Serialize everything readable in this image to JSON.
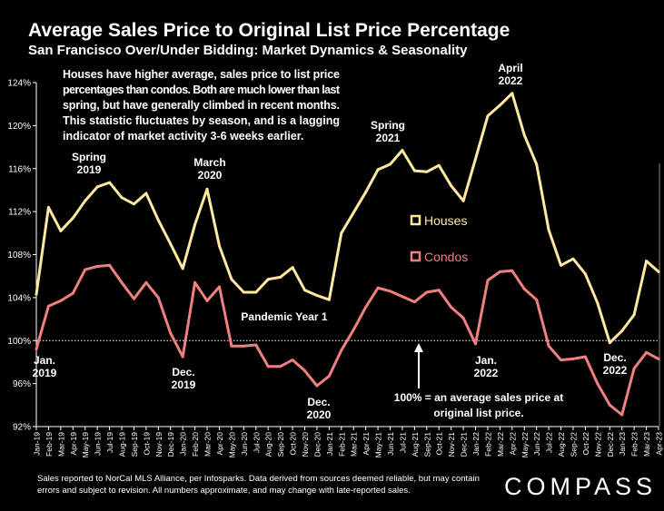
{
  "title": "Average Sales Price to Original List Price Percentage",
  "subtitle": "San Francisco Over/Under Bidding: Market Dynamics & Seasonality",
  "footnote": "Sales reported to NorCal MLS Alliance, per Infosparks. Data derived from sources deemed reliable, but may contain errors and subject to revision. All numbers approximate, and may change with late-reported sales.",
  "logo": "COMPASS",
  "colors": {
    "houses": "#FFE9A0",
    "condos": "#F08080",
    "background": "#000000",
    "text": "#FFFFFF"
  },
  "chart_data": {
    "type": "line",
    "categories": [
      "Jan-19",
      "Feb-19",
      "Mar-19",
      "Apr-19",
      "May-19",
      "Jun-19",
      "Jul-19",
      "Aug-19",
      "Sep-19",
      "Oct-19",
      "Nov-19",
      "Dec-19",
      "Jan-20",
      "Feb-20",
      "Mar-20",
      "Apr-20",
      "May-20",
      "Jun-20",
      "Jul-20",
      "Aug-20",
      "Sep-20",
      "Oct-20",
      "Nov-20",
      "Dec-20",
      "Jan-21",
      "Feb-21",
      "Mar-21",
      "Apr-21",
      "May-21",
      "Jun-21",
      "Jul-21",
      "Aug-21",
      "Sep-21",
      "Oct-21",
      "Nov-21",
      "Dec-21",
      "Jan-22",
      "Feb-22",
      "Mar-22",
      "Apr-22",
      "May-22",
      "Jun-22",
      "Jul-22",
      "Aug-22",
      "Sep-22",
      "Oct-22",
      "Nov-22",
      "Dec-22",
      "Jan-23",
      "Feb-23",
      "Mar-23",
      "Apr-23"
    ],
    "series": [
      {
        "name": "Houses",
        "values": [
          104.3,
          112.4,
          110.2,
          111.4,
          113.0,
          114.3,
          114.7,
          113.3,
          112.7,
          113.7,
          111.2,
          109.0,
          106.7,
          110.8,
          114.1,
          108.8,
          105.7,
          104.5,
          104.5,
          105.7,
          105.9,
          106.8,
          104.7,
          104.2,
          103.8,
          110.0,
          111.9,
          113.8,
          115.9,
          116.4,
          117.7,
          115.8,
          115.7,
          116.3,
          114.4,
          113.0,
          116.9,
          120.9,
          121.9,
          123.0,
          119.1,
          116.4,
          110.3,
          107.0,
          107.6,
          106.2,
          103.5,
          99.8,
          100.9,
          102.4,
          107.4,
          106.4
        ]
      },
      {
        "name": "Condos",
        "values": [
          99.2,
          103.2,
          103.7,
          104.4,
          106.6,
          106.9,
          107.0,
          105.4,
          103.9,
          105.4,
          104.0,
          100.7,
          98.5,
          105.4,
          103.7,
          105.0,
          99.5,
          99.5,
          99.6,
          97.6,
          97.6,
          98.2,
          97.2,
          95.8,
          96.7,
          99.1,
          101.0,
          103.1,
          104.9,
          104.6,
          104.1,
          103.6,
          104.5,
          104.7,
          103.1,
          102.1,
          99.7,
          105.6,
          106.4,
          106.5,
          104.8,
          103.8,
          99.5,
          98.2,
          98.3,
          98.5,
          96.0,
          94.0,
          93.1,
          97.4,
          98.9,
          98.3
        ]
      }
    ],
    "ylim": [
      92,
      124
    ],
    "yticks": [
      "92%",
      "96%",
      "100%",
      "104%",
      "108%",
      "112%",
      "116%",
      "120%",
      "124%"
    ],
    "legend": [
      "Houses",
      "Condos"
    ],
    "legend_placement": "center",
    "reference_line": 100,
    "grid": false
  },
  "annotations": {
    "note": "Houses have higher average, sales price to list price percentages than condos. Both are much lower than last spring, but have generally climbed in recent months. This statistic fluctuates by season, and is a lagging indicator of market activity 3-6 weeks earlier.",
    "spring2019": [
      "Spring",
      "2019"
    ],
    "march2020": [
      "March",
      "2020"
    ],
    "spring2021": [
      "Spring",
      "2021"
    ],
    "april2022": [
      "April",
      "2022"
    ],
    "jan2019": [
      "Jan.",
      "2019"
    ],
    "dec2019": [
      "Dec.",
      "2019"
    ],
    "pandemic": "Pandemic Year 1",
    "dec2020": [
      "Dec.",
      "2020"
    ],
    "jan2022": [
      "Jan.",
      "2022"
    ],
    "dec2022": [
      "Dec.",
      "2022"
    ],
    "hundred_note": [
      "100% = an average sales price at",
      "original list price."
    ]
  }
}
